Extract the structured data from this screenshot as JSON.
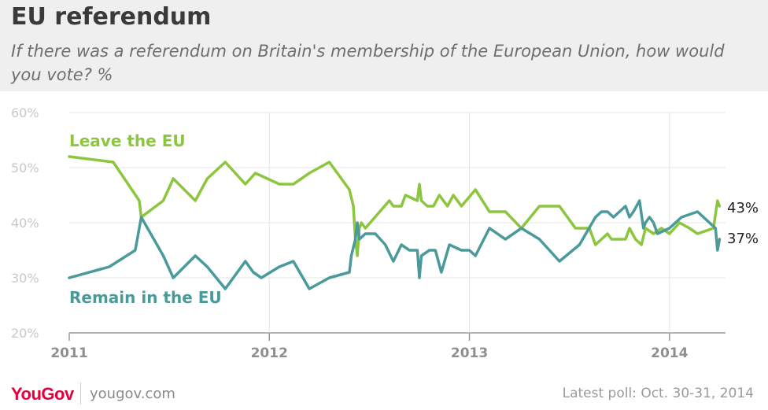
{
  "header": {
    "title": "EU referendum",
    "subtitle": "If there was a referendum on Britain's membership of the European Union, how would you vote? %"
  },
  "footer": {
    "brand": "YouGov",
    "url": "yougov.com",
    "latest_poll": "Latest poll: Oct. 30-31, 2014"
  },
  "chart_data": {
    "type": "line",
    "ylim": [
      20,
      60
    ],
    "y_ticks": [
      20,
      30,
      40,
      50,
      60
    ],
    "y_tick_labels": [
      "20%",
      "30%",
      "40%",
      "50%",
      "60%"
    ],
    "xlim": [
      2011.0,
      2014.28
    ],
    "x_ticks": [
      2011,
      2012,
      2013,
      2014
    ],
    "x_tick_labels": [
      "2011",
      "2012",
      "2013",
      "2014"
    ],
    "grid": true,
    "colors": {
      "leave": "#8cc63f",
      "remain": "#4a9a9b",
      "grid": "#e4e4e4",
      "axis": "#999999",
      "tick_text": "#c8c8c8",
      "end_label": "#222222"
    },
    "series": [
      {
        "name": "Leave the EU",
        "key": "leave",
        "end_label": "43%",
        "points": [
          [
            2011.0,
            52
          ],
          [
            2011.22,
            51
          ],
          [
            2011.35,
            44
          ],
          [
            2011.36,
            41
          ],
          [
            2011.47,
            44
          ],
          [
            2011.52,
            48
          ],
          [
            2011.63,
            44
          ],
          [
            2011.69,
            48
          ],
          [
            2011.78,
            51
          ],
          [
            2011.88,
            47
          ],
          [
            2011.93,
            49
          ],
          [
            2012.05,
            47
          ],
          [
            2012.12,
            47
          ],
          [
            2012.2,
            49
          ],
          [
            2012.3,
            51
          ],
          [
            2012.4,
            46
          ],
          [
            2012.42,
            43
          ],
          [
            2012.43,
            37
          ],
          [
            2012.44,
            34
          ],
          [
            2012.45,
            39
          ],
          [
            2012.46,
            40
          ],
          [
            2012.48,
            39
          ],
          [
            2012.6,
            44
          ],
          [
            2012.62,
            43
          ],
          [
            2012.66,
            43
          ],
          [
            2012.68,
            45
          ],
          [
            2012.74,
            44
          ],
          [
            2012.75,
            47
          ],
          [
            2012.76,
            44
          ],
          [
            2012.79,
            43
          ],
          [
            2012.82,
            43
          ],
          [
            2012.85,
            45
          ],
          [
            2012.89,
            43
          ],
          [
            2012.92,
            45
          ],
          [
            2012.96,
            43
          ],
          [
            2013.03,
            46
          ],
          [
            2013.1,
            42
          ],
          [
            2013.18,
            42
          ],
          [
            2013.26,
            39
          ],
          [
            2013.35,
            43
          ],
          [
            2013.45,
            43
          ],
          [
            2013.53,
            39
          ],
          [
            2013.6,
            39
          ],
          [
            2013.63,
            36
          ],
          [
            2013.66,
            37
          ],
          [
            2013.69,
            38
          ],
          [
            2013.71,
            37
          ],
          [
            2013.78,
            37
          ],
          [
            2013.8,
            39
          ],
          [
            2013.83,
            37
          ],
          [
            2013.86,
            36
          ],
          [
            2013.88,
            39
          ],
          [
            2013.92,
            38
          ],
          [
            2013.96,
            39
          ],
          [
            2014.0,
            38
          ],
          [
            2014.05,
            40
          ],
          [
            2014.1,
            39
          ],
          [
            2014.14,
            38
          ],
          [
            2014.22,
            39
          ],
          [
            2014.24,
            44
          ],
          [
            2014.25,
            43
          ]
        ]
      },
      {
        "name": "Remain in the EU",
        "key": "remain",
        "end_label": "37%",
        "points": [
          [
            2011.0,
            30
          ],
          [
            2011.2,
            32
          ],
          [
            2011.33,
            35
          ],
          [
            2011.36,
            41
          ],
          [
            2011.47,
            34
          ],
          [
            2011.52,
            30
          ],
          [
            2011.63,
            34
          ],
          [
            2011.69,
            32
          ],
          [
            2011.78,
            28
          ],
          [
            2011.88,
            33
          ],
          [
            2011.92,
            31
          ],
          [
            2011.96,
            30
          ],
          [
            2012.05,
            32
          ],
          [
            2012.12,
            33
          ],
          [
            2012.2,
            28
          ],
          [
            2012.3,
            30
          ],
          [
            2012.4,
            31
          ],
          [
            2012.41,
            34
          ],
          [
            2012.43,
            37
          ],
          [
            2012.44,
            40
          ],
          [
            2012.45,
            37
          ],
          [
            2012.48,
            38
          ],
          [
            2012.53,
            38
          ],
          [
            2012.58,
            36
          ],
          [
            2012.62,
            33
          ],
          [
            2012.66,
            36
          ],
          [
            2012.7,
            35
          ],
          [
            2012.74,
            35
          ],
          [
            2012.75,
            30
          ],
          [
            2012.76,
            34
          ],
          [
            2012.8,
            35
          ],
          [
            2012.83,
            35
          ],
          [
            2012.86,
            31
          ],
          [
            2012.9,
            36
          ],
          [
            2012.96,
            35
          ],
          [
            2013.0,
            35
          ],
          [
            2013.03,
            34
          ],
          [
            2013.1,
            39
          ],
          [
            2013.18,
            37
          ],
          [
            2013.26,
            39
          ],
          [
            2013.35,
            37
          ],
          [
            2013.45,
            33
          ],
          [
            2013.55,
            36
          ],
          [
            2013.63,
            41
          ],
          [
            2013.66,
            42
          ],
          [
            2013.69,
            42
          ],
          [
            2013.72,
            41
          ],
          [
            2013.78,
            43
          ],
          [
            2013.8,
            41
          ],
          [
            2013.82,
            42
          ],
          [
            2013.85,
            44
          ],
          [
            2013.87,
            39
          ],
          [
            2013.88,
            40
          ],
          [
            2013.9,
            41
          ],
          [
            2013.92,
            40
          ],
          [
            2013.94,
            38
          ],
          [
            2014.0,
            39
          ],
          [
            2014.06,
            41
          ],
          [
            2014.14,
            42
          ],
          [
            2014.2,
            40
          ],
          [
            2014.23,
            39
          ],
          [
            2014.24,
            35
          ],
          [
            2014.25,
            37
          ]
        ]
      }
    ]
  }
}
